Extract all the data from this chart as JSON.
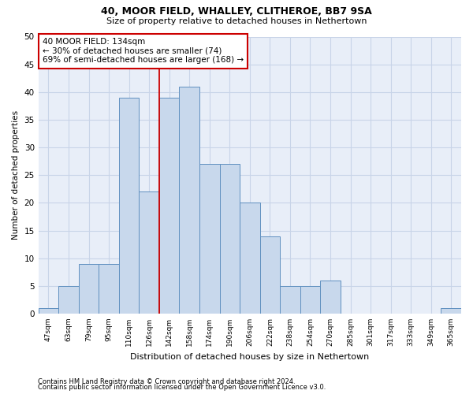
{
  "title1": "40, MOOR FIELD, WHALLEY, CLITHEROE, BB7 9SA",
  "title2": "Size of property relative to detached houses in Nethertown",
  "xlabel": "Distribution of detached houses by size in Nethertown",
  "ylabel": "Number of detached properties",
  "categories": [
    "47sqm",
    "63sqm",
    "79sqm",
    "95sqm",
    "110sqm",
    "126sqm",
    "142sqm",
    "158sqm",
    "174sqm",
    "190sqm",
    "206sqm",
    "222sqm",
    "238sqm",
    "254sqm",
    "270sqm",
    "285sqm",
    "301sqm",
    "317sqm",
    "333sqm",
    "349sqm",
    "365sqm"
  ],
  "values": [
    1,
    5,
    9,
    9,
    39,
    22,
    39,
    41,
    27,
    27,
    20,
    14,
    5,
    5,
    6,
    0,
    0,
    0,
    0,
    0,
    1
  ],
  "bar_color": "#c8d8ec",
  "bar_edgecolor": "#6090c0",
  "vline_x": 5.5,
  "vline_color": "#cc0000",
  "annotation_text": "40 MOOR FIELD: 134sqm\n← 30% of detached houses are smaller (74)\n69% of semi-detached houses are larger (168) →",
  "annotation_box_color": "#ffffff",
  "annotation_box_edgecolor": "#cc0000",
  "ylim": [
    0,
    50
  ],
  "yticks": [
    0,
    5,
    10,
    15,
    20,
    25,
    30,
    35,
    40,
    45,
    50
  ],
  "grid_color": "#c8d4e8",
  "background_color": "#e8eef8",
  "footer1": "Contains HM Land Registry data © Crown copyright and database right 2024.",
  "footer2": "Contains public sector information licensed under the Open Government Licence v3.0."
}
